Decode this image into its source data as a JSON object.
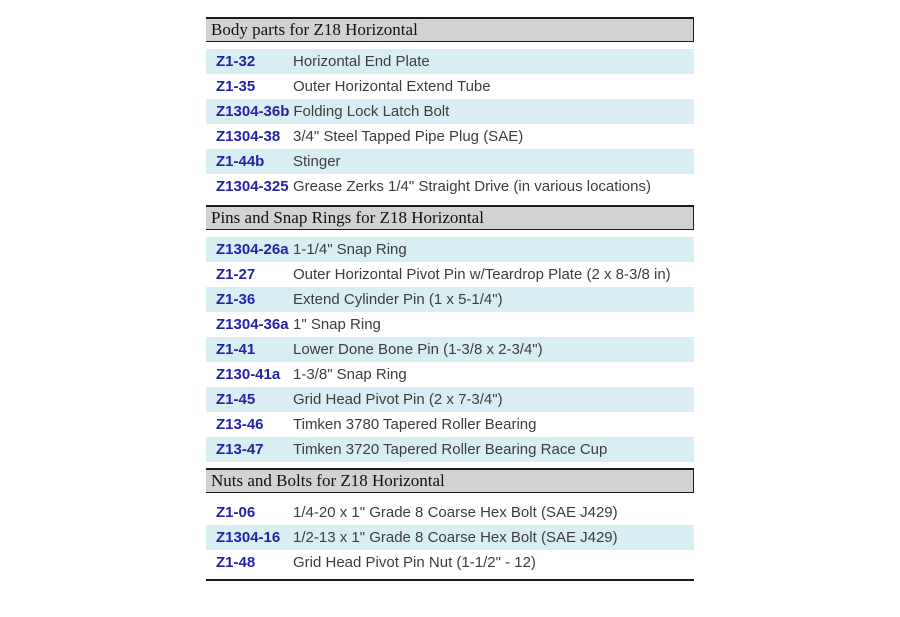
{
  "table": {
    "colors": {
      "row_shade": "#d8eef2",
      "header_bg": "#d2d2d2",
      "part_number": "#2323a7",
      "description": "#3d3d3d",
      "border": "#1b1b1b"
    },
    "sections": [
      {
        "title": "Body parts for Z18 Horizontal",
        "rows": [
          {
            "part": "Z1-32",
            "desc": "Horizontal End Plate"
          },
          {
            "part": "Z1-35",
            "desc": "Outer Horizontal Extend Tube"
          },
          {
            "part": "Z1304-36b",
            "desc": "Folding Lock Latch Bolt"
          },
          {
            "part": "Z1304-38",
            "desc": "3/4\" Steel Tapped Pipe Plug (SAE)"
          },
          {
            "part": "Z1-44b",
            "desc": "Stinger"
          },
          {
            "part": "Z1304-325",
            "desc": "Grease Zerks 1/4\" Straight Drive (in various locations)"
          }
        ]
      },
      {
        "title": "Pins and Snap Rings for Z18 Horizontal",
        "rows": [
          {
            "part": "Z1304-26a",
            "desc": "1-1/4\" Snap Ring"
          },
          {
            "part": "Z1-27",
            "desc": "Outer Horizontal Pivot Pin w/Teardrop Plate (2 x 8-3/8 in)"
          },
          {
            "part": "Z1-36",
            "desc": "Extend Cylinder Pin (1 x 5-1/4\")"
          },
          {
            "part": "Z1304-36a",
            "desc": "1\" Snap Ring"
          },
          {
            "part": "Z1-41",
            "desc": "Lower Done Bone Pin (1-3/8 x 2-3/4\")"
          },
          {
            "part": "Z130-41a",
            "desc": "1-3/8\" Snap Ring"
          },
          {
            "part": "Z1-45",
            "desc": "Grid Head Pivot Pin (2 x 7-3/4\")"
          },
          {
            "part": "Z13-46",
            "desc": "Timken 3780 Tapered Roller Bearing"
          },
          {
            "part": "Z13-47",
            "desc": "Timken 3720 Tapered Roller Bearing Race Cup"
          }
        ]
      },
      {
        "title": "Nuts and Bolts for Z18 Horizontal",
        "rows": [
          {
            "part": "Z1-06",
            "desc": "1/4-20 x 1\" Grade 8 Coarse Hex Bolt (SAE J429)"
          },
          {
            "part": "Z1304-16",
            "desc": "1/2-13 x 1\" Grade 8 Coarse Hex Bolt (SAE J429)"
          },
          {
            "part": "Z1-48",
            "desc": "Grid Head Pivot Pin Nut (1-1/2\" - 12)"
          }
        ]
      }
    ]
  }
}
